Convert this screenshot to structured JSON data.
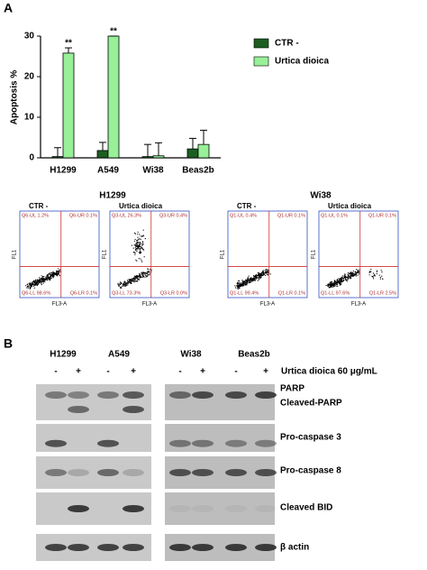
{
  "chart_data": {
    "type": "bar",
    "ylabel": "Apoptosis %",
    "categories": [
      "H1299",
      "A549",
      "Wi38",
      "Beas2b"
    ],
    "series": [
      {
        "name": "CTR -",
        "color": "#1b5e20",
        "values": [
          0.3,
          1.8,
          0.3,
          2.2
        ],
        "errors": [
          2.2,
          2.0,
          3.0,
          2.6
        ]
      },
      {
        "name": "Urtica dioica",
        "color": "#98f098",
        "values": [
          25.8,
          30,
          0.5,
          3.3
        ],
        "errors": [
          1.3,
          0,
          3.2,
          3.5
        ]
      }
    ],
    "ylim": [
      0,
      30
    ],
    "yticks": [
      0,
      10,
      20,
      30
    ],
    "annotations": [
      {
        "text": "**",
        "x": "H1299"
      },
      {
        "text": "**",
        "x": "A549"
      }
    ]
  },
  "panel_labels": [
    "A",
    "B"
  ],
  "flow": {
    "x_label": "FL3-A",
    "y_label": "FL1",
    "groups": [
      {
        "title": "H1299",
        "plots": [
          {
            "label": "CTR -",
            "quadrants": [
              "Q6-UL 1.2%",
              "Q6-UR 0.1%",
              "Q6-LL 98.6%",
              "Q6-LR 0.1%"
            ]
          },
          {
            "label": "Urtica dioica",
            "quadrants": [
              "Q3-UL 26.3%",
              "Q3-UR 0.4%",
              "Q3-LL 73.3%",
              "Q3-LR 0.0%"
            ]
          }
        ]
      },
      {
        "title": "Wi38",
        "plots": [
          {
            "label": "CTR -",
            "quadrants": [
              "Q1-UL 0.4%",
              "Q1-UR 0.1%",
              "Q1-LL 99.4%",
              "Q1-LR 0.1%"
            ]
          },
          {
            "label": "Urtica dioica",
            "quadrants": [
              "Q1-UL 0.1%",
              "Q1-UR 0.1%",
              "Q1-LL 97.6%",
              "Q1-LR 2.5%"
            ]
          }
        ]
      }
    ]
  },
  "blot": {
    "cell_lines": [
      "H1299",
      "A549",
      "Wi38",
      "Beas2b"
    ],
    "signs": [
      "-",
      "+"
    ],
    "treatment": "Urtica dioica 60 μg/mL",
    "proteins": [
      "PARP",
      "Cleaved-PARP",
      "Pro-caspase 3",
      "Pro-caspase 8",
      "Cleaved BID",
      "β actin"
    ]
  }
}
